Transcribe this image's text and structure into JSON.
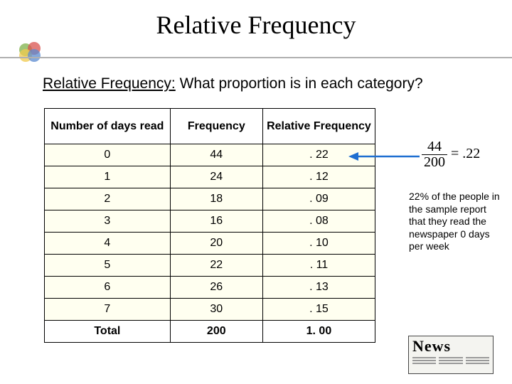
{
  "title": "Relative Frequency",
  "subtitle_underlined": "Relative Frequency:",
  "subtitle_rest": " What proportion is in each category?",
  "table": {
    "columns": [
      "Number of days read",
      "Frequency",
      "Relative Frequency"
    ],
    "rows": [
      [
        "0",
        "44",
        ". 22"
      ],
      [
        "1",
        "24",
        ". 12"
      ],
      [
        "2",
        "18",
        ". 09"
      ],
      [
        "3",
        "16",
        ". 08"
      ],
      [
        "4",
        "20",
        ". 10"
      ],
      [
        "5",
        "22",
        ". 11"
      ],
      [
        "6",
        "26",
        ". 13"
      ],
      [
        "7",
        "30",
        ". 15"
      ]
    ],
    "total_row": [
      "Total",
      "200",
      "1. 00"
    ],
    "header_bg": "#ffffff",
    "body_bg": "#fffff0",
    "border_color": "#000000",
    "col_widths": [
      "38%",
      "28%",
      "34%"
    ]
  },
  "formula": {
    "numerator": "44",
    "denominator": "200",
    "equals": "=",
    "result": ".22"
  },
  "annotation": "22% of the people in the sample report that they read the newspaper 0 days per week",
  "news_label": "News",
  "colors": {
    "title": "#000000",
    "divider": "#b0b0b0",
    "arrow": "#1f6fd1",
    "bullet_circles": [
      "#7fb24a",
      "#d9534f",
      "#f0c94d",
      "#5b8bd0"
    ]
  }
}
